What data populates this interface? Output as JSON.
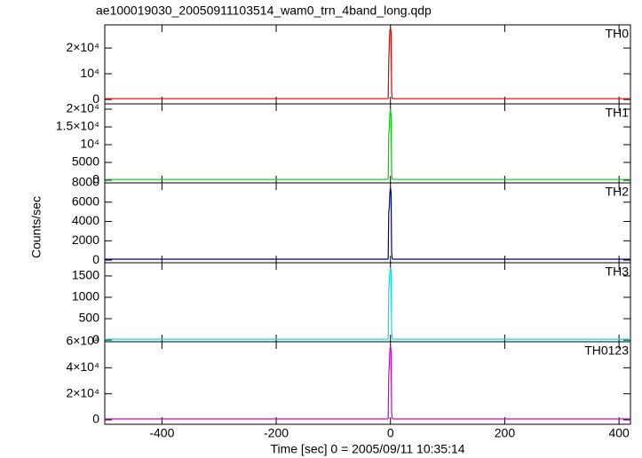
{
  "chart_data": [
    {
      "type": "line",
      "title": "ae100019030_20050911103514_wam0_trn_4band_long.qdp",
      "x": [
        -500,
        -400,
        -300,
        -200,
        -100,
        -20,
        -5,
        -4,
        -3,
        -2,
        -1,
        0,
        1,
        2,
        3,
        4,
        20,
        100,
        200,
        300,
        400,
        420
      ],
      "xlim": [
        -500,
        420
      ],
      "xticks": [
        -400,
        -200,
        0,
        200,
        400
      ],
      "ylim": [
        -1700,
        29000
      ],
      "yticks": [
        0,
        {
          "value": 10000,
          "label": "10⁴"
        },
        {
          "value": 20000,
          "label": "2×10⁴"
        }
      ],
      "series": [
        {
          "name": "TH0",
          "color": "#e00000",
          "values": [
            300,
            300,
            300,
            300,
            300,
            300,
            300,
            400,
            15000,
            22000,
            27000,
            28000,
            26000,
            3000,
            500,
            300,
            300,
            300,
            300,
            300,
            300,
            300
          ]
        }
      ]
    },
    {
      "type": "line",
      "x": [
        -500,
        -400,
        -300,
        -200,
        -100,
        -20,
        -5,
        -4,
        -3,
        -2,
        -1,
        0,
        1,
        2,
        3,
        4,
        20,
        100,
        200,
        300,
        400,
        420
      ],
      "xlim": [
        -500,
        420
      ],
      "xticks": [
        -400,
        -200,
        0,
        200,
        400
      ],
      "ylim": [
        -750,
        21500
      ],
      "yticks": [
        0,
        5000,
        {
          "value": 10000,
          "label": "10⁴"
        },
        {
          "value": 15000,
          "label": "1.5×10⁴"
        },
        {
          "value": 20000,
          "label": "2×10⁴"
        }
      ],
      "series": [
        {
          "name": "TH1",
          "color": "#00d000",
          "values": [
            200,
            200,
            200,
            200,
            200,
            200,
            200,
            300,
            13000,
            15000,
            19000,
            20000,
            18000,
            2000,
            400,
            200,
            200,
            200,
            200,
            200,
            200,
            200
          ]
        }
      ]
    },
    {
      "type": "line",
      "ylabel": "Counts/sec",
      "x": [
        -500,
        -400,
        -300,
        -200,
        -100,
        -20,
        -5,
        -4,
        -3,
        -2,
        -1,
        0,
        1,
        2,
        3,
        4,
        20,
        100,
        200,
        300,
        400,
        420
      ],
      "xlim": [
        -500,
        420
      ],
      "xticks": [
        -400,
        -200,
        0,
        200,
        400
      ],
      "ylim": [
        -270,
        8000
      ],
      "yticks": [
        0,
        2000,
        4000,
        6000,
        8000
      ],
      "series": [
        {
          "name": "TH2",
          "color": "#00008b",
          "values": [
            100,
            100,
            100,
            100,
            100,
            100,
            100,
            150,
            5000,
            5500,
            7000,
            7500,
            7000,
            800,
            200,
            100,
            100,
            100,
            100,
            100,
            100,
            100
          ]
        }
      ]
    },
    {
      "type": "line",
      "x": [
        -500,
        -400,
        -300,
        -200,
        -100,
        -20,
        -5,
        -4,
        -3,
        -2,
        -1,
        0,
        1,
        2,
        3,
        4,
        20,
        100,
        200,
        300,
        400,
        420
      ],
      "xlim": [
        -500,
        420
      ],
      "xticks": [
        -400,
        -200,
        0,
        200,
        400
      ],
      "ylim": [
        -40,
        1810
      ],
      "yticks": [
        0,
        500,
        1000,
        1500
      ],
      "series": [
        {
          "name": "TH3",
          "color": "#00e0e0",
          "values": [
            20,
            20,
            20,
            20,
            20,
            20,
            20,
            30,
            1200,
            1400,
            1600,
            1700,
            1600,
            200,
            50,
            20,
            20,
            20,
            20,
            20,
            20,
            20
          ]
        }
      ]
    },
    {
      "type": "line",
      "xlabel": "Time [sec] 0 = 2005/09/11 10:35:14",
      "x": [
        -500,
        -400,
        -300,
        -200,
        -100,
        -20,
        -5,
        -4,
        -3,
        -2,
        -1,
        0,
        1,
        2,
        3,
        4,
        20,
        100,
        200,
        300,
        400,
        420
      ],
      "xlim": [
        -500,
        420
      ],
      "xticks": [
        -400,
        -200,
        0,
        200,
        400
      ],
      "ylim": [
        -3400,
        60000
      ],
      "yticks": [
        0,
        {
          "value": 20000,
          "label": "2×10⁴"
        },
        {
          "value": 40000,
          "label": "4×10⁴"
        },
        {
          "value": 60000,
          "label": "6×10⁴"
        }
      ],
      "series": [
        {
          "name": "TH0123",
          "color": "#d000d0",
          "values": [
            700,
            700,
            700,
            700,
            700,
            700,
            700,
            900,
            35000,
            43000,
            54000,
            57000,
            53000,
            6000,
            1200,
            700,
            700,
            700,
            700,
            700,
            700,
            700
          ]
        }
      ]
    }
  ]
}
